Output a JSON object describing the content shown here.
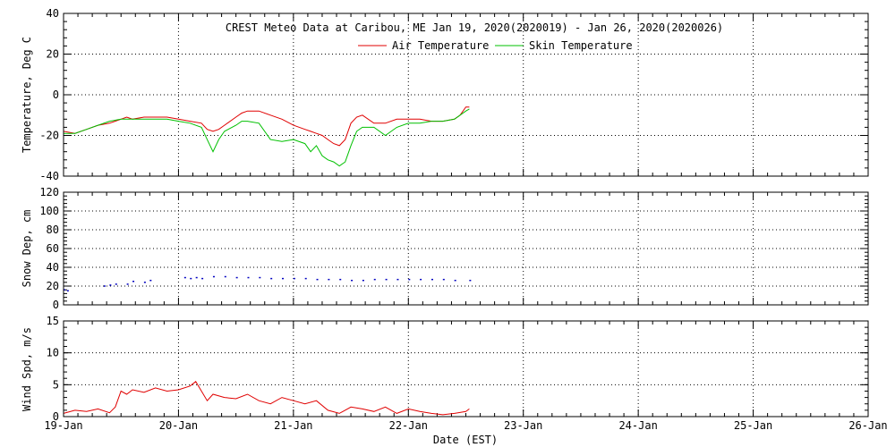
{
  "title": "CREST Meteo Data at Caribou, ME   Jan 19, 2020(2020019) - Jan 26, 2020(2020026)",
  "xlabel": "Date (EST)",
  "colors": {
    "air": "#e00000",
    "skin": "#00c000",
    "snow": "#0000c0",
    "wind": "#e00000"
  },
  "chart_data": [
    {
      "type": "line",
      "ylabel": "Temperature, Deg C",
      "ylim": [
        -40,
        40
      ],
      "yticks": [
        -40,
        -20,
        0,
        20,
        40
      ],
      "xlim": [
        0,
        7
      ],
      "xtick_labels": [
        "19-Jan",
        "20-Jan",
        "21-Jan",
        "22-Jan",
        "23-Jan",
        "24-Jan",
        "25-Jan",
        "26-Jan"
      ],
      "grid": true,
      "legend": "top-center",
      "series": [
        {
          "name": "Air Temperature",
          "color": "#e00000",
          "x": [
            0,
            0.1,
            0.2,
            0.3,
            0.4,
            0.5,
            0.55,
            0.6,
            0.7,
            0.8,
            0.9,
            1.0,
            1.1,
            1.2,
            1.25,
            1.3,
            1.35,
            1.4,
            1.5,
            1.55,
            1.6,
            1.7,
            1.8,
            1.9,
            2.0,
            2.1,
            2.15,
            2.2,
            2.25,
            2.3,
            2.35,
            2.4,
            2.45,
            2.5,
            2.55,
            2.6,
            2.7,
            2.8,
            2.9,
            3.0,
            3.1,
            3.2,
            3.3,
            3.4,
            3.45,
            3.5,
            3.53
          ],
          "y": [
            -18,
            -19,
            -17,
            -15,
            -14,
            -12,
            -11,
            -12,
            -11,
            -11,
            -11,
            -12,
            -13,
            -14,
            -17,
            -18,
            -17,
            -15,
            -11,
            -9,
            -8,
            -8,
            -10,
            -12,
            -15,
            -17,
            -18,
            -19,
            -20,
            -22,
            -24,
            -25,
            -22,
            -14,
            -11,
            -10,
            -14,
            -14,
            -12,
            -12,
            -12,
            -13,
            -13,
            -12,
            -10,
            -6,
            -6
          ]
        },
        {
          "name": "Skin Temperature",
          "color": "#00c000",
          "x": [
            0,
            0.1,
            0.2,
            0.3,
            0.4,
            0.5,
            0.55,
            0.6,
            0.7,
            0.8,
            0.9,
            1.0,
            1.1,
            1.2,
            1.25,
            1.3,
            1.35,
            1.4,
            1.5,
            1.55,
            1.6,
            1.7,
            1.8,
            1.9,
            2.0,
            2.1,
            2.15,
            2.2,
            2.25,
            2.3,
            2.35,
            2.4,
            2.45,
            2.5,
            2.55,
            2.6,
            2.7,
            2.8,
            2.9,
            3.0,
            3.1,
            3.2,
            3.3,
            3.4,
            3.45,
            3.5,
            3.53
          ],
          "y": [
            -19,
            -19,
            -17,
            -15,
            -13,
            -12,
            -12,
            -12,
            -12,
            -12,
            -12,
            -13,
            -14,
            -16,
            -22,
            -28,
            -22,
            -18,
            -15,
            -13,
            -13,
            -14,
            -22,
            -23,
            -22,
            -24,
            -28,
            -25,
            -30,
            -32,
            -33,
            -35,
            -33,
            -25,
            -18,
            -16,
            -16,
            -20,
            -16,
            -14,
            -14,
            -13,
            -13,
            -12,
            -10,
            -8,
            -7
          ]
        }
      ]
    },
    {
      "type": "scatter",
      "ylabel": "Snow Dep, cm",
      "ylim": [
        0,
        120
      ],
      "yticks": [
        0,
        20,
        40,
        60,
        80,
        100,
        120
      ],
      "grid": true,
      "series": [
        {
          "color": "#0000c0",
          "x": [
            0.0,
            0.03,
            0.35,
            0.4,
            0.45,
            0.55,
            0.6,
            0.7,
            0.75,
            1.05,
            1.1,
            1.15,
            1.2,
            1.3,
            1.4,
            1.5,
            1.6,
            1.7,
            1.8,
            1.9,
            2.0,
            2.1,
            2.2,
            2.3,
            2.4,
            2.5,
            2.6,
            2.7,
            2.8,
            2.9,
            3.0,
            3.1,
            3.2,
            3.3,
            3.4,
            3.53
          ],
          "y": [
            16,
            15,
            20,
            21,
            22,
            22,
            25,
            24,
            26,
            29,
            28,
            29,
            28,
            30,
            30,
            29,
            29,
            29,
            28,
            28,
            28,
            28,
            27,
            27,
            27,
            26,
            26,
            27,
            27,
            27,
            27,
            27,
            27,
            27,
            26,
            26
          ]
        }
      ]
    },
    {
      "type": "line",
      "ylabel": "Wind Spd, m/s",
      "ylim": [
        0,
        15
      ],
      "yticks": [
        0,
        5,
        10,
        15
      ],
      "grid": true,
      "series": [
        {
          "color": "#e00000",
          "x": [
            0,
            0.1,
            0.2,
            0.3,
            0.4,
            0.45,
            0.5,
            0.55,
            0.6,
            0.7,
            0.8,
            0.9,
            1.0,
            1.1,
            1.15,
            1.2,
            1.25,
            1.3,
            1.4,
            1.5,
            1.6,
            1.7,
            1.8,
            1.9,
            2.0,
            2.1,
            2.2,
            2.3,
            2.4,
            2.5,
            2.6,
            2.7,
            2.8,
            2.9,
            3.0,
            3.1,
            3.2,
            3.3,
            3.4,
            3.5,
            3.53
          ],
          "y": [
            0.5,
            1.0,
            0.8,
            1.2,
            0.6,
            1.5,
            4.0,
            3.5,
            4.2,
            3.8,
            4.5,
            4.0,
            4.2,
            4.8,
            5.5,
            4.0,
            2.5,
            3.5,
            3.0,
            2.8,
            3.5,
            2.5,
            2.0,
            3.0,
            2.5,
            2.0,
            2.5,
            1.0,
            0.5,
            1.5,
            1.2,
            0.8,
            1.5,
            0.5,
            1.2,
            0.8,
            0.5,
            0.3,
            0.5,
            0.8,
            1.2
          ]
        }
      ]
    }
  ]
}
